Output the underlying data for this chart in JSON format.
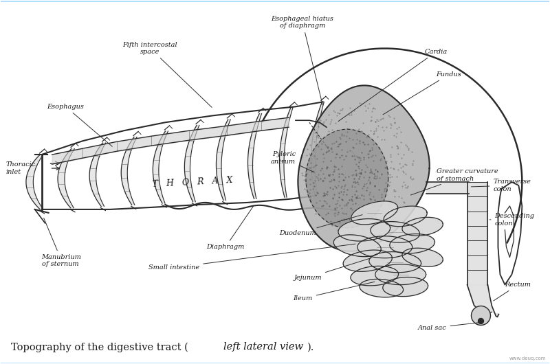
{
  "background_color": "#ffffff",
  "line_color": "#2a2a2a",
  "text_color": "#1a1a1a",
  "light_gray": "#c8c8c8",
  "mid_gray": "#a0a0a0",
  "dark_gray": "#707070",
  "stipple_gray": "#888888",
  "caption": "Topography of the digestive tract (",
  "caption_italic": "left lateral view",
  "caption_end": ").",
  "watermark": "www.deuq.com",
  "thorax_label": "T   H   O   R   A   X",
  "annotation_fs": 7.0,
  "caption_fs": 10.5,
  "fig_w": 8.0,
  "fig_h": 5.3
}
